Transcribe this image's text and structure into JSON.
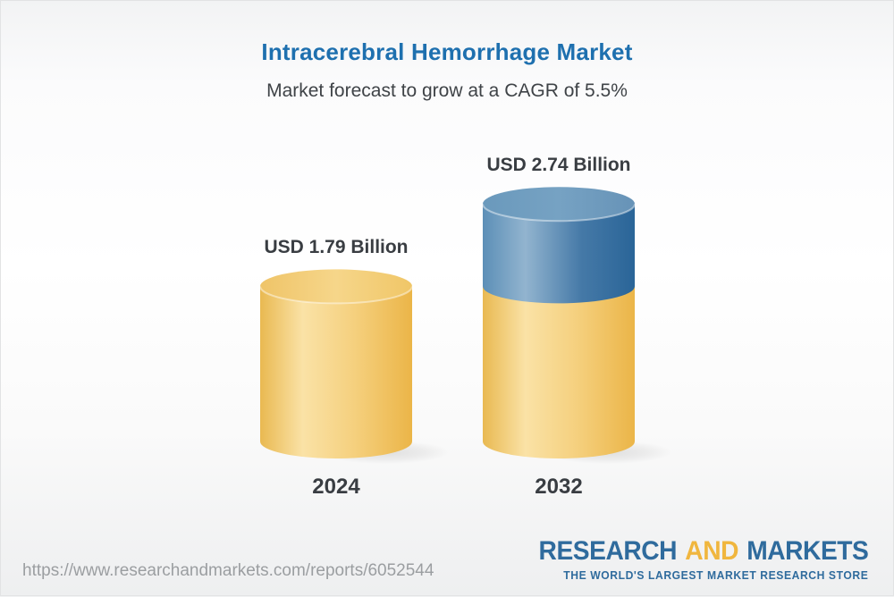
{
  "chart_data": {
    "type": "bar",
    "variant": "3d-stacked-cylinder",
    "title": "Intracerebral Hemorrhage Market",
    "subtitle": "Market forecast to grow at a CAGR of 5.5%",
    "cagr_pct": 5.5,
    "unit": "USD Billion",
    "categories": [
      "2024",
      "2032"
    ],
    "values": [
      1.79,
      2.74
    ],
    "value_labels": [
      "USD 1.79 Billion",
      "USD 2.74 Billion"
    ],
    "base_value": 1.79,
    "legend_position": "none",
    "grid": false,
    "colors": {
      "base_segment": "#f2c96e",
      "growth_segment": "#4e81ab",
      "title": "#1e70af",
      "text": "#393d42"
    }
  },
  "footer": {
    "url": "https://www.researchandmarkets.com/reports/6052544",
    "logo": {
      "research": "RESEARCH",
      "and": "AND",
      "markets": "MARKETS",
      "tagline": "THE WORLD'S LARGEST MARKET RESEARCH STORE",
      "blue": "#2f6b9d",
      "yellow": "#f0b63e"
    }
  }
}
